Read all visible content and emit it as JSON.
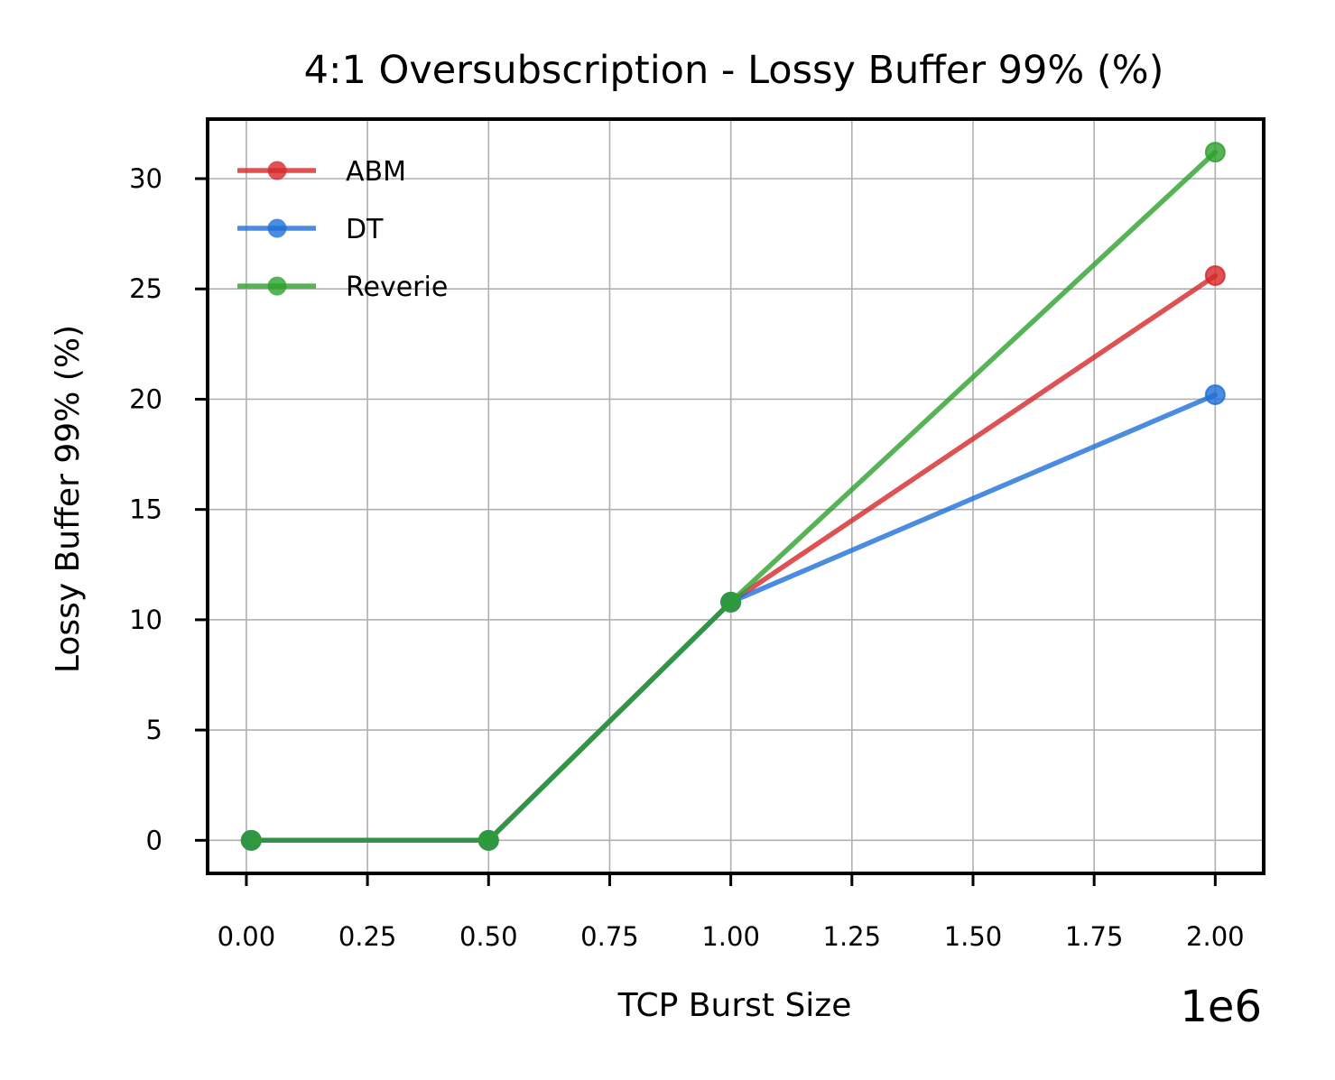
{
  "chart_data": {
    "type": "line",
    "title": "4:1 Oversubscription - Lossy Buffer 99% (%)",
    "xlabel": "TCP Burst Size",
    "ylabel": "Lossy Buffer 99% (%)",
    "x_offset_label": "1e6",
    "x": [
      0.01,
      0.5,
      1.0,
      2.0
    ],
    "xlim": [
      -0.08,
      2.1
    ],
    "ylim": [
      -1.5,
      32.7
    ],
    "x_ticks": [
      0.0,
      0.25,
      0.5,
      0.75,
      1.0,
      1.25,
      1.5,
      1.75,
      2.0
    ],
    "x_tick_labels": [
      "0.00",
      "0.25",
      "0.50",
      "0.75",
      "1.00",
      "1.25",
      "1.50",
      "1.75",
      "2.00"
    ],
    "y_ticks": [
      0,
      5,
      10,
      15,
      20,
      25,
      30
    ],
    "y_tick_labels": [
      "0",
      "5",
      "10",
      "15",
      "20",
      "25",
      "30"
    ],
    "grid": true,
    "legend_position": "top-left",
    "series": [
      {
        "name": "ABM",
        "color": "#d62728",
        "values": [
          0,
          0,
          10.8,
          25.6
        ]
      },
      {
        "name": "DT",
        "color": "#1f6fd6",
        "values": [
          0,
          0,
          10.8,
          20.2
        ]
      },
      {
        "name": "Reverie",
        "color": "#2ca02c",
        "values": [
          0,
          0,
          10.8,
          31.2
        ]
      }
    ]
  }
}
